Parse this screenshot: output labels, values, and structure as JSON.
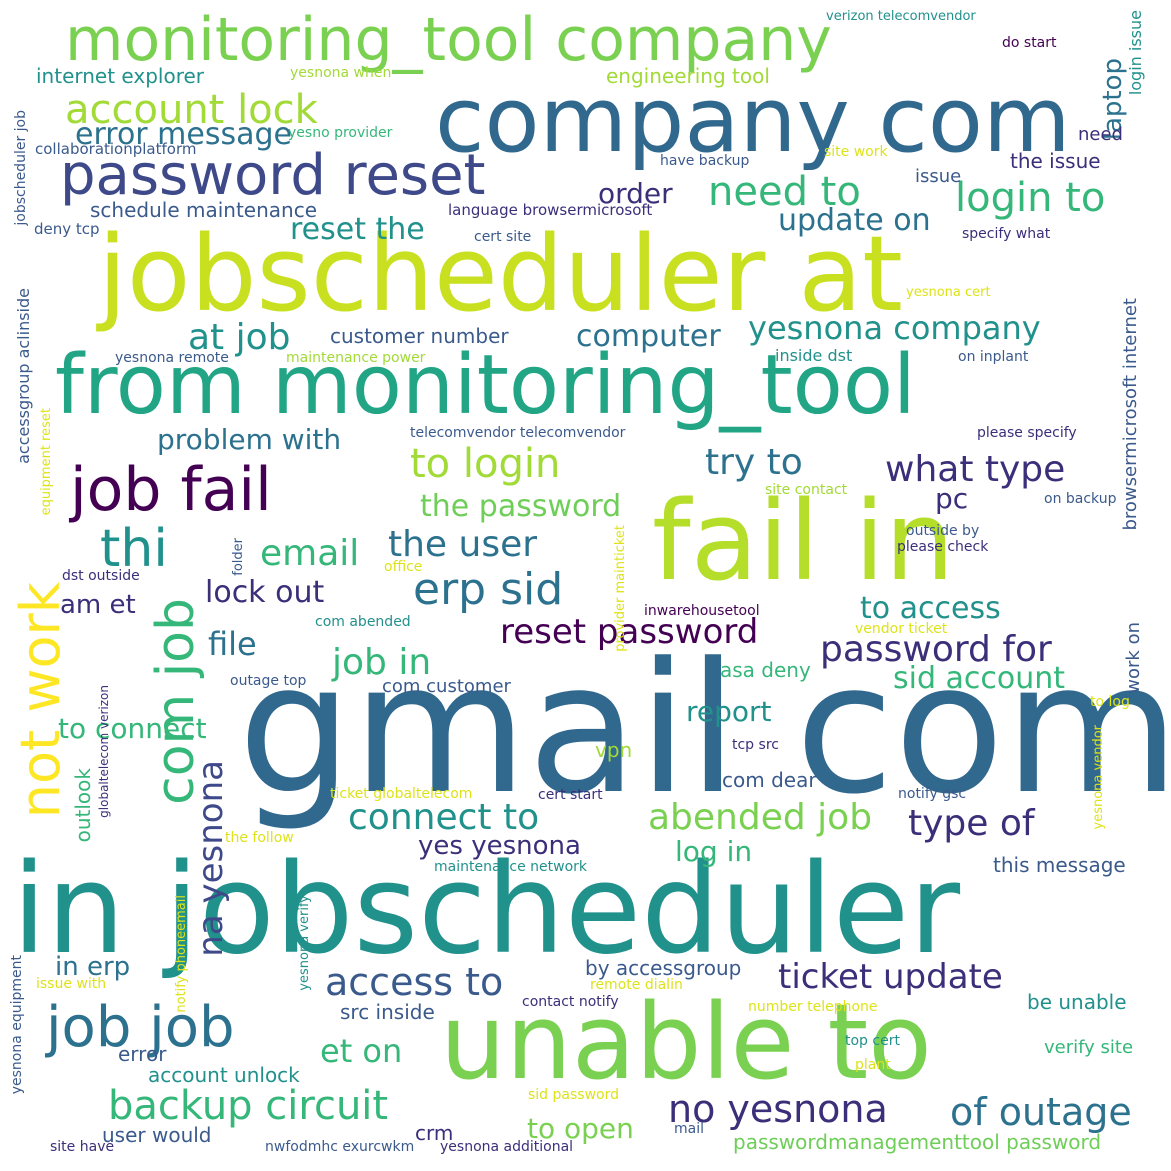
{
  "words": [
    "gmail com",
    "in jobscheduler",
    "jobscheduler at",
    "company com",
    "fail in",
    "from monitoring_tool",
    "unable to",
    "monitoring_tool company",
    "password reset",
    "job fail",
    "job job",
    "erp sid",
    "not work",
    "com job",
    "thi",
    "to login",
    "backup circuit",
    "account lock",
    "login to",
    "need to",
    "no yesnona",
    "of outage",
    "access to",
    "ticket update",
    "na yesnona",
    "the user",
    "connect to",
    "abended job",
    "reset password",
    "password for",
    "yesnona company",
    "type of",
    "what type",
    "email",
    "job in",
    "try to",
    "the password",
    "error message",
    "at job",
    "reset the",
    "computer",
    "update on",
    "sid account",
    "lock out",
    "to access",
    "file",
    "problem with",
    "to connect",
    "report",
    "yes yesnona",
    "log in",
    "to open",
    "laptop",
    "et on",
    "order",
    "in erp",
    "am et",
    "pc",
    "customer number",
    "schedule maintenance",
    "engineering tool",
    "internet explorer",
    "passwordmanagementtool password",
    "account unlock",
    "user would",
    "crm",
    "by accessgroup",
    "src inside",
    "com customer",
    "asa deny",
    "com dear",
    "vpn",
    "outlook",
    "the issue",
    "this message",
    "be unable",
    "verify site",
    "work on",
    "error",
    "issue",
    "need",
    "browsermicrosoft internet",
    "accessgroup aclinside",
    "jobscheduler job",
    "login issue",
    "language browsermicrosoft",
    "collaborationplatform",
    "deny tcp",
    "cert site",
    "specify what",
    "have backup",
    "site work",
    "yesnona when",
    "yesno provider",
    "do start",
    "verizon telecomvendor",
    "telecomvendor telecomvendor",
    "please specify",
    "inside dst",
    "on inplant",
    "yesnona remote",
    "maintenance power",
    "site contact",
    "on backup",
    "outside by",
    "please check",
    "inwarehousetool",
    "dst outside",
    "com abended",
    "vendor ticket",
    "outage top",
    "tcp src",
    "to log",
    "ticket globaltelecom",
    "cert start",
    "notify gsc",
    "the follow",
    "maintenance network",
    "remote dialin",
    "contact notify",
    "number telephone",
    "top cert",
    "plant",
    "sid password",
    "mail",
    "nwfodmhc exurcwkm",
    "yesnona additional",
    "site have",
    "issue with",
    "yesnona equipment",
    "equipment reset",
    "globaltelecom verizon",
    "notify phoneemail",
    "yesnona verify",
    "folder",
    "office",
    "provider mainticket",
    "yesnona vendor",
    "yesnona cert"
  ],
  "colors": {
    "background": "#ffffff",
    "purple": "#440154",
    "indigo": "#3b2f7a",
    "blue": "#31688e",
    "teal": "#21918c",
    "green": "#35b779",
    "light_green": "#6ece58",
    "lime": "#a2da37",
    "yellow": "#dde318"
  }
}
